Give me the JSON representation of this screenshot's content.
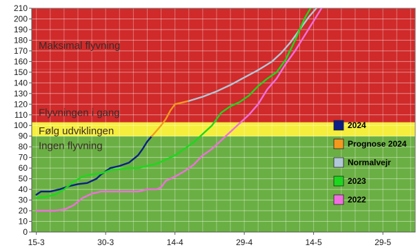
{
  "chart_data": {
    "type": "line",
    "title": "",
    "xlabel": "",
    "ylabel": "",
    "ylim": [
      0,
      210
    ],
    "y_ticks": [
      0,
      10,
      20,
      30,
      40,
      50,
      60,
      70,
      80,
      90,
      100,
      110,
      120,
      130,
      140,
      150,
      160,
      170,
      180,
      190,
      200,
      210
    ],
    "x_ticks": [
      {
        "day": 0,
        "label": "15-3"
      },
      {
        "day": 15,
        "label": "30-3"
      },
      {
        "day": 30,
        "label": "14-4"
      },
      {
        "day": 45,
        "label": "29-4"
      },
      {
        "day": 60,
        "label": "14-5"
      },
      {
        "day": 75,
        "label": "29-5"
      }
    ],
    "xlim": [
      -1,
      82
    ],
    "grid": true,
    "legend_position": "right",
    "zones": [
      {
        "name": "Ingen flyvning",
        "from": 0,
        "to": 90,
        "color": "#6aaf43"
      },
      {
        "name": "Følg udviklingen",
        "from": 90,
        "to": 103,
        "color": "#f5ee3c"
      },
      {
        "name": "Flyvningen i gang",
        "from": 103,
        "to": 153,
        "color": "#d02a2a"
      },
      {
        "name": "Maksimal flyvning",
        "from": 153,
        "to": 210,
        "color": "#d02a2a"
      }
    ],
    "zone_labels": [
      {
        "text": "Maksimal flyvning",
        "y": 175
      },
      {
        "text": "Flyvningen i gang",
        "y": 112
      },
      {
        "text": "Følg udviklingen",
        "y": 95
      },
      {
        "text": "Ingen flyvning",
        "y": 81
      }
    ],
    "series": [
      {
        "name": "2024",
        "color": "#0b1f86",
        "points": [
          [
            0,
            35
          ],
          [
            1,
            38
          ],
          [
            3,
            38
          ],
          [
            5,
            40
          ],
          [
            7,
            43
          ],
          [
            9,
            45
          ],
          [
            11,
            46
          ],
          [
            13,
            50
          ],
          [
            14,
            54
          ],
          [
            15,
            57
          ],
          [
            16,
            60
          ],
          [
            18,
            62
          ],
          [
            20,
            65
          ],
          [
            22,
            72
          ],
          [
            23,
            78
          ],
          [
            24,
            85
          ],
          [
            25,
            90
          ]
        ]
      },
      {
        "name": "Prognose 2024",
        "color": "#f39a1e",
        "points": [
          [
            25,
            90
          ],
          [
            26,
            95
          ],
          [
            27,
            100
          ],
          [
            28,
            106
          ],
          [
            29,
            114
          ],
          [
            30,
            120
          ],
          [
            32,
            122
          ],
          [
            33,
            123
          ]
        ]
      },
      {
        "name": "Normalvejr",
        "color": "#b0c8d8",
        "points": [
          [
            33,
            123
          ],
          [
            36,
            127
          ],
          [
            39,
            132
          ],
          [
            42,
            138
          ],
          [
            45,
            145
          ],
          [
            48,
            152
          ],
          [
            51,
            160
          ],
          [
            53,
            168
          ],
          [
            55,
            178
          ],
          [
            57,
            190
          ],
          [
            59,
            202
          ],
          [
            61,
            212
          ]
        ]
      },
      {
        "name": "2023",
        "color": "#1cd81c",
        "points": [
          [
            0,
            32
          ],
          [
            2,
            33
          ],
          [
            4,
            35
          ],
          [
            6,
            40
          ],
          [
            8,
            47
          ],
          [
            10,
            52
          ],
          [
            12,
            54
          ],
          [
            14,
            55
          ],
          [
            16,
            58
          ],
          [
            18,
            59
          ],
          [
            20,
            60
          ],
          [
            22,
            60
          ],
          [
            24,
            62
          ],
          [
            26,
            64
          ],
          [
            28,
            68
          ],
          [
            30,
            72
          ],
          [
            32,
            78
          ],
          [
            34,
            84
          ],
          [
            36,
            92
          ],
          [
            38,
            100
          ],
          [
            40,
            112
          ],
          [
            42,
            118
          ],
          [
            44,
            122
          ],
          [
            46,
            128
          ],
          [
            48,
            137
          ],
          [
            50,
            144
          ],
          [
            52,
            150
          ],
          [
            54,
            162
          ],
          [
            56,
            180
          ],
          [
            58,
            200
          ],
          [
            60,
            215
          ]
        ]
      },
      {
        "name": "2022",
        "color": "#f06ee0",
        "points": [
          [
            0,
            20
          ],
          [
            4,
            20
          ],
          [
            6,
            21
          ],
          [
            8,
            25
          ],
          [
            10,
            32
          ],
          [
            12,
            36
          ],
          [
            14,
            38
          ],
          [
            18,
            38
          ],
          [
            22,
            38
          ],
          [
            24,
            40
          ],
          [
            26,
            40
          ],
          [
            27,
            42
          ],
          [
            28,
            48
          ],
          [
            30,
            52
          ],
          [
            32,
            57
          ],
          [
            34,
            63
          ],
          [
            36,
            72
          ],
          [
            38,
            78
          ],
          [
            40,
            86
          ],
          [
            42,
            94
          ],
          [
            44,
            102
          ],
          [
            46,
            110
          ],
          [
            48,
            120
          ],
          [
            50,
            134
          ],
          [
            52,
            144
          ],
          [
            54,
            158
          ],
          [
            56,
            170
          ],
          [
            58,
            184
          ],
          [
            60,
            198
          ],
          [
            62,
            212
          ]
        ]
      }
    ]
  }
}
